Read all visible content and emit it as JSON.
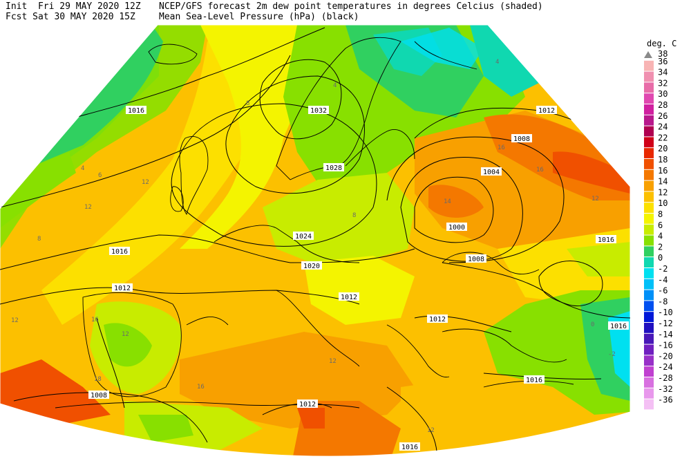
{
  "header": {
    "init": "Init  Fri 29 MAY 2020 12Z",
    "fcst": "Fcst Sat 30 MAY 2020 15Z",
    "title1": "NCEP/GFS forecast 2m dew point temperatures in degrees Celcius (shaded)",
    "title2": "Mean Sea-Level Pressure (hPa) (black)"
  },
  "legend": {
    "unit": "deg. C",
    "entries": [
      {
        "value": "38",
        "color": "#ffffff",
        "arrow": true
      },
      {
        "value": "36",
        "color": "#f8b4b4"
      },
      {
        "value": "34",
        "color": "#f090b0"
      },
      {
        "value": "32",
        "color": "#e86ca8"
      },
      {
        "value": "30",
        "color": "#e048b0"
      },
      {
        "value": "28",
        "color": "#d020a0"
      },
      {
        "value": "26",
        "color": "#b8188c"
      },
      {
        "value": "24",
        "color": "#b00050"
      },
      {
        "value": "22",
        "color": "#d00018"
      },
      {
        "value": "20",
        "color": "#e82800"
      },
      {
        "value": "18",
        "color": "#f05000"
      },
      {
        "value": "16",
        "color": "#f47800"
      },
      {
        "value": "14",
        "color": "#f8a000"
      },
      {
        "value": "12",
        "color": "#fcc000"
      },
      {
        "value": "10",
        "color": "#fce000"
      },
      {
        "value": "8",
        "color": "#f4f400"
      },
      {
        "value": "6",
        "color": "#c8ec00"
      },
      {
        "value": "4",
        "color": "#88e000"
      },
      {
        "value": "2",
        "color": "#30d060"
      },
      {
        "value": "0",
        "color": "#10d8b0"
      },
      {
        "value": "-2",
        "color": "#00e0f0"
      },
      {
        "value": "-4",
        "color": "#00c0f8"
      },
      {
        "value": "-6",
        "color": "#0090f8"
      },
      {
        "value": "-8",
        "color": "#0050f0"
      },
      {
        "value": "-10",
        "color": "#0018d8"
      },
      {
        "value": "-12",
        "color": "#2010c0"
      },
      {
        "value": "-14",
        "color": "#4818b8"
      },
      {
        "value": "-16",
        "color": "#7020c0"
      },
      {
        "value": "-20",
        "color": "#9830c8"
      },
      {
        "value": "-24",
        "color": "#c040d0"
      },
      {
        "value": "-28",
        "color": "#d870e0"
      },
      {
        "value": "-32",
        "color": "#e898ec"
      },
      {
        "value": "-36",
        "color": "#f4c0f4"
      }
    ]
  },
  "map": {
    "isobar_labels": [
      "1016",
      "1012",
      "1008",
      "1004",
      "1000",
      "1032",
      "1028",
      "1024",
      "1020",
      "1016",
      "1012",
      "1008",
      "1016",
      "1012",
      "1016",
      "1012",
      "1008",
      "1012",
      "1016",
      "1016"
    ],
    "dewpoint_labels": [
      "8",
      "12",
      "4",
      "6",
      "12",
      "12",
      "8",
      "16",
      "12",
      "16",
      "14",
      "12",
      "4",
      "0",
      "-2",
      "4",
      "8",
      "12",
      "16",
      "18",
      "12",
      "16"
    ]
  }
}
